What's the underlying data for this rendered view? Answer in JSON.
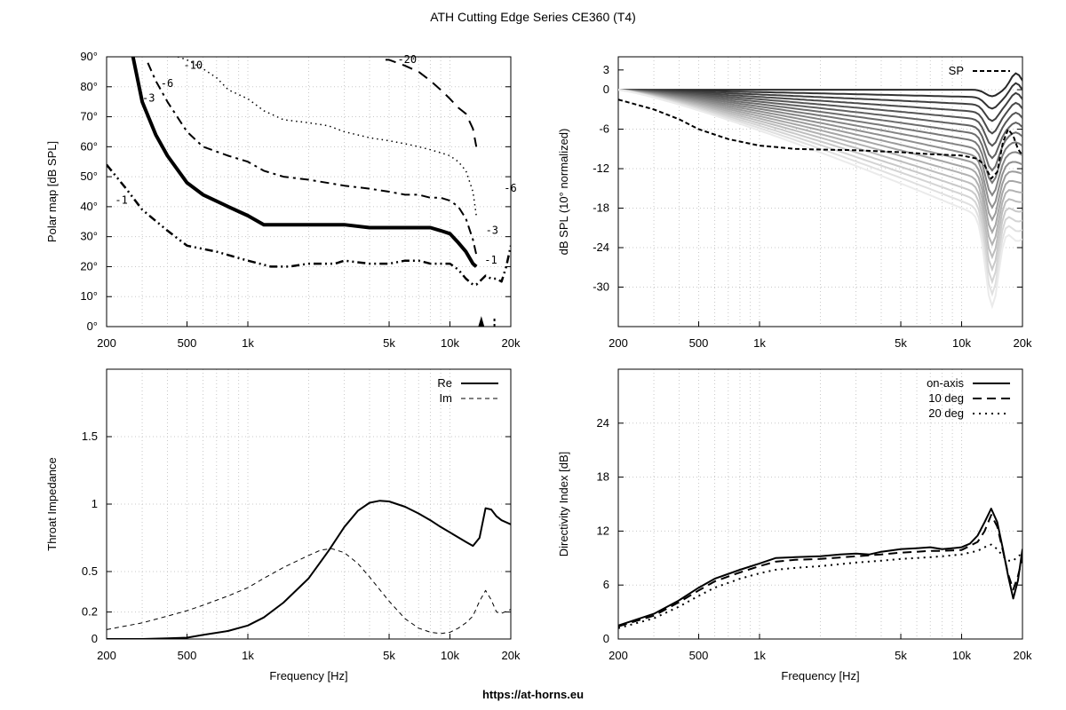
{
  "page": {
    "title": "ATH Cutting Edge Series CE360 (T4)",
    "footer": "https://at-horns.eu"
  },
  "chart_data": [
    {
      "type": "line",
      "id": "polar",
      "ylabel": "Polar map [dB SPL]",
      "xlabel": "",
      "xscale": "log",
      "xlim": [
        200,
        20000
      ],
      "ylim": [
        0,
        90
      ],
      "x_ticks": [
        200,
        500,
        1000,
        5000,
        10000,
        20000
      ],
      "x_tick_labels": [
        "200",
        "500",
        "1k",
        "5k",
        "10k",
        "20k"
      ],
      "y_ticks": [
        0,
        10,
        20,
        30,
        40,
        50,
        60,
        70,
        80,
        90
      ],
      "y_tick_labels": [
        "0°",
        "10°",
        "20°",
        "30°",
        "40°",
        "50°",
        "60°",
        "70°",
        "80°",
        "90°"
      ],
      "contour_labels": [
        "-1",
        "-3",
        "-6",
        "-10",
        "-20",
        "-1",
        "-3",
        "-6"
      ],
      "series": [
        {
          "name": "-1",
          "x": [
            200,
            250,
            300,
            400,
            500,
            700,
            1000,
            1300,
            1600,
            2000,
            2300,
            2700,
            3000,
            4000,
            5000,
            6000,
            7000,
            8000,
            9000,
            10000,
            11000,
            12000,
            13000,
            13500,
            14000,
            15000,
            16000,
            17000,
            18000,
            19000,
            20000
          ],
          "y": [
            54,
            46,
            39,
            32,
            27,
            25,
            22,
            20,
            20,
            21,
            21,
            21,
            22,
            21,
            21,
            22,
            22,
            21,
            21,
            21,
            19,
            16,
            14,
            14,
            15,
            17,
            16,
            16,
            15,
            20,
            27
          ]
        },
        {
          "name": "-3",
          "x": [
            270,
            300,
            350,
            400,
            500,
            600,
            800,
            1000,
            1200,
            1500,
            2000,
            2500,
            3000,
            4000,
            5000,
            6000,
            7000,
            8000,
            9000,
            10000,
            11000,
            12000,
            13000,
            13500
          ],
          "y": [
            90,
            75,
            64,
            57,
            48,
            44,
            40,
            37,
            34,
            34,
            34,
            34,
            34,
            33,
            33,
            33,
            33,
            33,
            32,
            31,
            28,
            25,
            21,
            20
          ]
        },
        {
          "name": "-6",
          "x": [
            320,
            350,
            400,
            500,
            600,
            800,
            1000,
            1200,
            1500,
            2000,
            3000,
            4000,
            5000,
            6000,
            7000,
            8000,
            9000,
            10000,
            11000,
            12000,
            13000,
            13500
          ],
          "y": [
            88,
            82,
            75,
            65,
            60,
            57,
            55,
            52,
            50,
            49,
            47,
            46,
            45,
            44,
            44,
            43,
            43,
            42,
            40,
            36,
            29,
            24
          ]
        },
        {
          "name": "-10",
          "x": [
            450,
            500,
            600,
            700,
            800,
            1000,
            1200,
            1500,
            2000,
            2500,
            3000,
            4000,
            5000,
            6000,
            7000,
            8000,
            9000,
            10000,
            11000,
            12000,
            13000,
            13500
          ],
          "y": [
            90,
            89,
            86,
            83,
            79,
            76,
            72,
            69,
            68,
            67,
            65,
            63,
            62,
            61,
            60,
            59,
            58,
            57,
            55,
            52,
            45,
            37
          ]
        },
        {
          "name": "-20",
          "x": [
            4800,
            5000,
            6000,
            7000,
            8000,
            9000,
            10000,
            11000,
            12000,
            13000,
            13500
          ],
          "y": [
            89,
            89,
            87,
            85,
            82,
            79,
            76,
            73,
            71,
            66,
            60
          ]
        }
      ]
    },
    {
      "type": "line",
      "id": "normalized",
      "ylabel": "dB SPL (10° normalized)",
      "xlabel": "",
      "xscale": "log",
      "xlim": [
        200,
        20000
      ],
      "ylim": [
        -36,
        5
      ],
      "x_ticks": [
        200,
        500,
        1000,
        5000,
        10000,
        20000
      ],
      "x_tick_labels": [
        "200",
        "500",
        "1k",
        "5k",
        "10k",
        "20k"
      ],
      "y_ticks": [
        0,
        -6,
        -12,
        -18,
        -24,
        -30
      ],
      "y_tick_labels": [
        "0",
        "-6",
        "-12",
        "-18",
        "-24",
        "-30"
      ],
      "extra_y_tick_labels": [
        "3"
      ],
      "legend": {
        "entries": [
          "SP"
        ],
        "placement": "top-right"
      },
      "series": [
        {
          "name": "SP",
          "x": [
            200,
            300,
            400,
            500,
            700,
            1000,
            1200,
            1500,
            2000,
            3000,
            5000,
            7000,
            10000,
            12000,
            13000,
            14000,
            15000,
            16000,
            17000,
            18000,
            19000,
            20000
          ],
          "y": [
            -1.5,
            -3,
            -4.5,
            -6,
            -7.5,
            -8.5,
            -8.7,
            -9,
            -9.1,
            -9.2,
            -9.5,
            -9.8,
            -10,
            -10.5,
            -11.5,
            -13.5,
            -12.5,
            -8,
            -6,
            -7,
            -9,
            -10
          ]
        }
      ]
    },
    {
      "type": "line",
      "id": "impedance",
      "ylabel": "Throat Impedance",
      "xlabel": "Frequency [Hz]",
      "xscale": "log",
      "xlim": [
        200,
        20000
      ],
      "ylim": [
        0,
        2
      ],
      "x_ticks": [
        200,
        500,
        1000,
        5000,
        10000,
        20000
      ],
      "x_tick_labels": [
        "200",
        "500",
        "1k",
        "5k",
        "10k",
        "20k"
      ],
      "y_ticks": [
        0,
        0.2,
        0.5,
        1,
        1.5
      ],
      "y_tick_labels": [
        "0",
        "0.2",
        "0.5",
        "1",
        "1.5"
      ],
      "legend": {
        "entries": [
          "Re",
          "Im"
        ],
        "placement": "top-right"
      },
      "series": [
        {
          "name": "Re",
          "x": [
            200,
            300,
            400,
            500,
            600,
            800,
            1000,
            1200,
            1500,
            2000,
            2500,
            3000,
            3500,
            4000,
            4500,
            5000,
            6000,
            7000,
            8000,
            9000,
            10000,
            12000,
            13000,
            14000,
            15000,
            16000,
            17000,
            18000,
            20000
          ],
          "y": [
            0,
            0,
            0.005,
            0.01,
            0.03,
            0.06,
            0.1,
            0.16,
            0.27,
            0.45,
            0.65,
            0.83,
            0.95,
            1.01,
            1.025,
            1.02,
            0.98,
            0.93,
            0.88,
            0.83,
            0.79,
            0.72,
            0.69,
            0.75,
            0.97,
            0.96,
            0.91,
            0.88,
            0.85
          ]
        },
        {
          "name": "Im",
          "x": [
            200,
            300,
            400,
            500,
            600,
            800,
            1000,
            1200,
            1500,
            2000,
            2300,
            2600,
            3000,
            3500,
            4000,
            5000,
            6000,
            7000,
            8000,
            9000,
            10000,
            11000,
            12000,
            13000,
            14000,
            15000,
            16000,
            17000,
            18000,
            20000
          ],
          "y": [
            0.07,
            0.12,
            0.17,
            0.21,
            0.25,
            0.32,
            0.38,
            0.45,
            0.53,
            0.62,
            0.66,
            0.67,
            0.64,
            0.56,
            0.46,
            0.28,
            0.15,
            0.08,
            0.05,
            0.04,
            0.05,
            0.08,
            0.12,
            0.17,
            0.28,
            0.36,
            0.29,
            0.2,
            0.19,
            0.22
          ]
        }
      ]
    },
    {
      "type": "line",
      "id": "di",
      "ylabel": "Directivity Index [dB]",
      "xlabel": "Frequency [Hz]",
      "xscale": "log",
      "xlim": [
        200,
        20000
      ],
      "ylim": [
        0,
        30
      ],
      "x_ticks": [
        200,
        500,
        1000,
        5000,
        10000,
        20000
      ],
      "x_tick_labels": [
        "200",
        "500",
        "1k",
        "5k",
        "10k",
        "20k"
      ],
      "y_ticks": [
        0,
        6,
        12,
        18,
        24
      ],
      "y_tick_labels": [
        "0",
        "6",
        "12",
        "18",
        "24"
      ],
      "legend": {
        "entries": [
          "on-axis",
          "10 deg",
          "20 deg"
        ],
        "placement": "top-right"
      },
      "series": [
        {
          "name": "on-axis",
          "x": [
            200,
            300,
            400,
            500,
            600,
            800,
            1000,
            1200,
            1500,
            2000,
            2500,
            3000,
            3500,
            4000,
            5000,
            6000,
            7000,
            8000,
            9000,
            10000,
            11000,
            12000,
            13000,
            14000,
            15000,
            16000,
            17000,
            18000,
            19000,
            20000
          ],
          "y": [
            1.5,
            2.8,
            4.3,
            5.7,
            6.7,
            7.7,
            8.4,
            9,
            9.1,
            9.2,
            9.4,
            9.5,
            9.4,
            9.7,
            10,
            10.1,
            10.2,
            10,
            10.1,
            10.2,
            10.6,
            11.5,
            13,
            14.5,
            13,
            10,
            7,
            4.5,
            6.5,
            10
          ]
        },
        {
          "name": "10 deg",
          "x": [
            200,
            300,
            400,
            500,
            600,
            800,
            1000,
            1200,
            1500,
            2000,
            3000,
            4000,
            5000,
            6000,
            7000,
            8000,
            10000,
            12000,
            13000,
            14000,
            15000,
            16000,
            17000,
            18000,
            19000,
            20000
          ],
          "y": [
            1.4,
            2.6,
            4.1,
            5.4,
            6.4,
            7.4,
            8.1,
            8.6,
            8.8,
            8.9,
            9.2,
            9.4,
            9.6,
            9.7,
            9.8,
            9.8,
            9.9,
            10.8,
            12,
            13.8,
            12.5,
            9.8,
            7.2,
            5.5,
            7,
            9
          ]
        },
        {
          "name": "20 deg",
          "x": [
            200,
            300,
            400,
            500,
            600,
            800,
            1000,
            1200,
            1500,
            2000,
            3000,
            4000,
            5000,
            6000,
            7000,
            8000,
            10000,
            12000,
            13000,
            14000,
            15000,
            16000,
            17000,
            18000,
            19000,
            20000
          ],
          "y": [
            1.2,
            2.3,
            3.6,
            4.8,
            5.7,
            6.7,
            7.3,
            7.7,
            7.9,
            8.1,
            8.5,
            8.7,
            8.9,
            9,
            9.1,
            9.2,
            9.4,
            9.8,
            10.2,
            10.5,
            10,
            9.2,
            8.7,
            8.7,
            9.2,
            9.5
          ]
        }
      ]
    }
  ]
}
